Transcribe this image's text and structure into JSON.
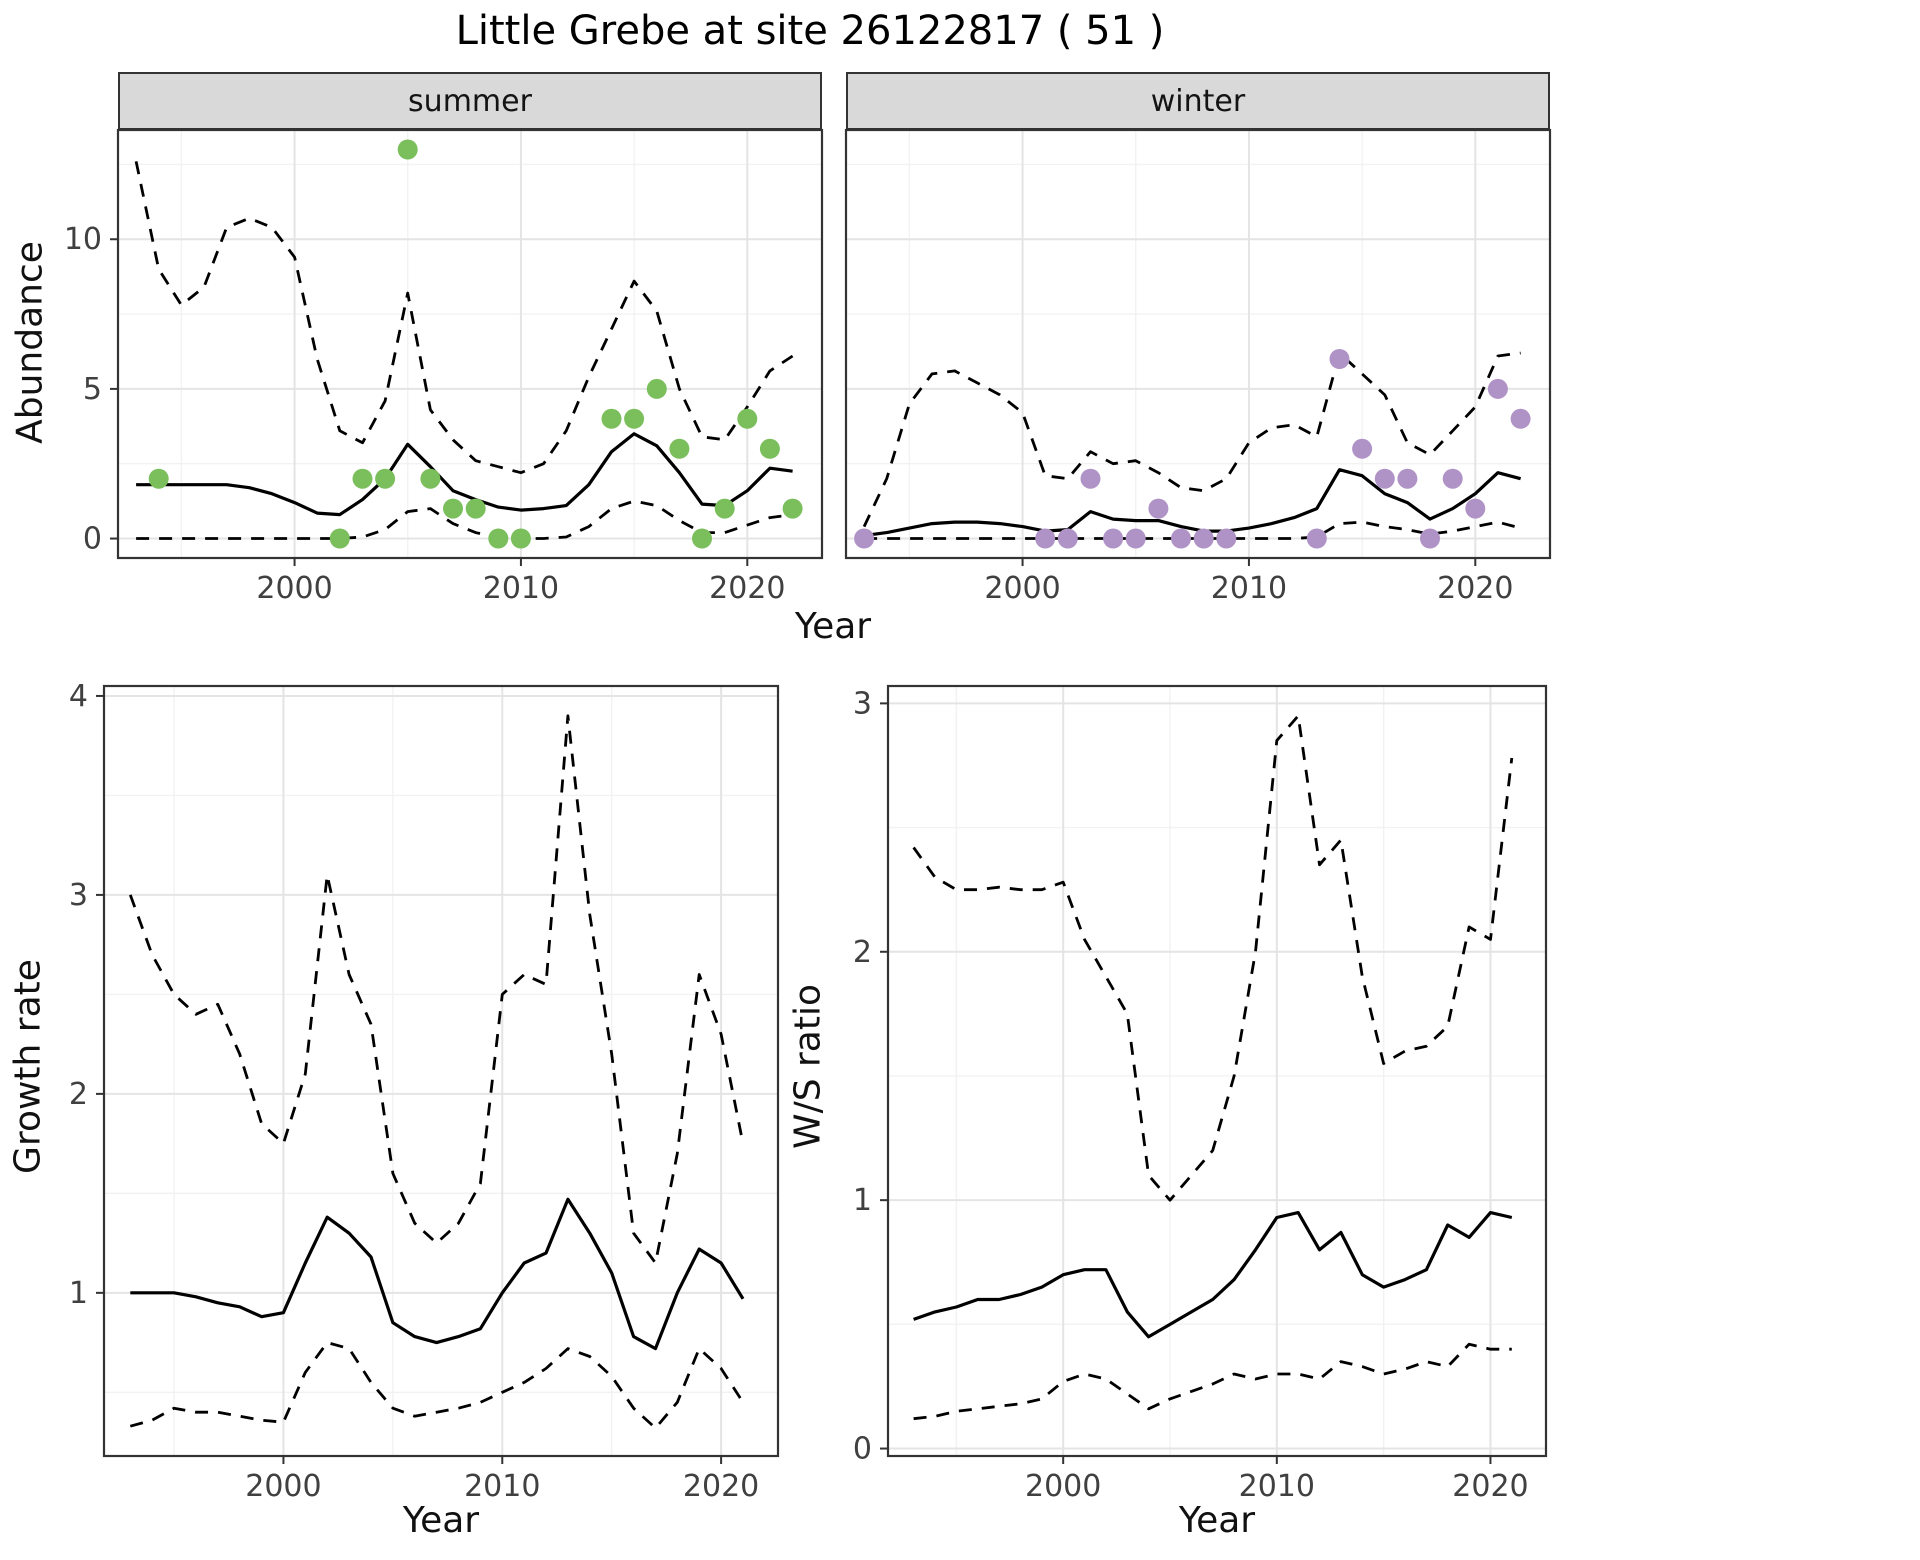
{
  "title": "Little Grebe at site 26122817 ( 51 )",
  "colors": {
    "summer_point": "#7bbf5c",
    "winter_point": "#b093c6",
    "line": "#000000",
    "grid_major": "#e4e4e4",
    "grid_minor": "#f2f2f2",
    "strip_bg": "#d9d9d9",
    "panel_border": "#333333"
  },
  "chart_data": [
    {
      "id": "abundance-summer",
      "type": "line",
      "facet_label": "summer",
      "xlabel": "Year",
      "ylabel": "Abundance",
      "xlim": [
        1992.2,
        2023.3
      ],
      "ylim": [
        -0.65,
        13.65
      ],
      "xticks": [
        2000,
        2010,
        2020
      ],
      "yticks": [
        0,
        5,
        10
      ],
      "xminor": [
        1995,
        2005,
        2015
      ],
      "yminor": [
        2.5,
        7.5,
        12.5
      ],
      "series": [
        {
          "name": "upper-ci",
          "style": "dashed",
          "x": [
            1993,
            1994,
            1995,
            1996,
            1997,
            1998,
            1999,
            2000,
            2001,
            2002,
            2003,
            2004,
            2005,
            2006,
            2007,
            2008,
            2009,
            2010,
            2011,
            2012,
            2013,
            2014,
            2015,
            2016,
            2017,
            2018,
            2019,
            2020,
            2021,
            2022
          ],
          "y": [
            12.6,
            9.0,
            7.8,
            8.4,
            10.4,
            10.7,
            10.4,
            9.4,
            6.0,
            3.6,
            3.2,
            4.6,
            8.2,
            4.3,
            3.3,
            2.6,
            2.4,
            2.2,
            2.5,
            3.6,
            5.4,
            7.0,
            8.6,
            7.6,
            5.0,
            3.4,
            3.3,
            4.4,
            5.6,
            6.1
          ]
        },
        {
          "name": "lower-ci",
          "style": "dashed",
          "x": [
            1993,
            1994,
            1995,
            1996,
            1997,
            1998,
            1999,
            2000,
            2001,
            2002,
            2003,
            2004,
            2005,
            2006,
            2007,
            2008,
            2009,
            2010,
            2011,
            2012,
            2013,
            2014,
            2015,
            2016,
            2017,
            2018,
            2019,
            2020,
            2021,
            2022
          ],
          "y": [
            0,
            0,
            0,
            0,
            0,
            0,
            0,
            0,
            0,
            0,
            0.05,
            0.3,
            0.9,
            1.0,
            0.5,
            0.2,
            0.05,
            0,
            0,
            0.05,
            0.4,
            1.0,
            1.25,
            1.1,
            0.6,
            0.2,
            0.2,
            0.45,
            0.7,
            0.8
          ]
        },
        {
          "name": "fit",
          "style": "solid",
          "x": [
            1993,
            1994,
            1995,
            1996,
            1997,
            1998,
            1999,
            2000,
            2001,
            2002,
            2003,
            2004,
            2005,
            2006,
            2007,
            2008,
            2009,
            2010,
            2011,
            2012,
            2013,
            2014,
            2015,
            2016,
            2017,
            2018,
            2019,
            2020,
            2021,
            2022
          ],
          "y": [
            1.8,
            1.8,
            1.8,
            1.8,
            1.8,
            1.7,
            1.5,
            1.2,
            0.85,
            0.8,
            1.3,
            2.0,
            3.15,
            2.4,
            1.6,
            1.3,
            1.05,
            0.95,
            1.0,
            1.1,
            1.8,
            2.9,
            3.5,
            3.1,
            2.2,
            1.15,
            1.1,
            1.6,
            2.35,
            2.25
          ]
        },
        {
          "name": "observed",
          "style": "points",
          "color": "#7bbf5c",
          "x": [
            1994,
            2002,
            2003,
            2004,
            2005,
            2006,
            2007,
            2008,
            2009,
            2010,
            2014,
            2015,
            2016,
            2017,
            2018,
            2019,
            2020,
            2021,
            2022
          ],
          "y": [
            2,
            0,
            2,
            2,
            13,
            2,
            1,
            1,
            0,
            0,
            4,
            4,
            5,
            3,
            0,
            1,
            4,
            3,
            1
          ]
        }
      ]
    },
    {
      "id": "abundance-winter",
      "type": "line",
      "facet_label": "winter",
      "xlabel": "Year",
      "ylabel": "Abundance",
      "xlim": [
        1992.2,
        2023.3
      ],
      "ylim": [
        -0.65,
        13.65
      ],
      "xticks": [
        2000,
        2010,
        2020
      ],
      "yticks": [
        0,
        5,
        10
      ],
      "xminor": [
        1995,
        2005,
        2015
      ],
      "yminor": [
        2.5,
        7.5,
        12.5
      ],
      "series": [
        {
          "name": "upper-ci",
          "style": "dashed",
          "x": [
            1993,
            1994,
            1995,
            1996,
            1997,
            1998,
            1999,
            2000,
            2001,
            2002,
            2003,
            2004,
            2005,
            2006,
            2007,
            2008,
            2009,
            2010,
            2011,
            2012,
            2013,
            2014,
            2015,
            2016,
            2017,
            2018,
            2019,
            2020,
            2021,
            2022
          ],
          "y": [
            0.4,
            2.0,
            4.5,
            5.5,
            5.6,
            5.2,
            4.8,
            4.2,
            2.1,
            2.0,
            2.9,
            2.5,
            2.6,
            2.2,
            1.7,
            1.6,
            2.0,
            3.2,
            3.7,
            3.8,
            3.4,
            6.2,
            5.5,
            4.8,
            3.2,
            2.8,
            3.6,
            4.4,
            6.1,
            6.2
          ]
        },
        {
          "name": "lower-ci",
          "style": "dashed",
          "x": [
            1993,
            1994,
            1995,
            1996,
            1997,
            1998,
            1999,
            2000,
            2001,
            2002,
            2003,
            2004,
            2005,
            2006,
            2007,
            2008,
            2009,
            2010,
            2011,
            2012,
            2013,
            2014,
            2015,
            2016,
            2017,
            2018,
            2019,
            2020,
            2021,
            2022
          ],
          "y": [
            0,
            0,
            0,
            0,
            0,
            0,
            0,
            0,
            0,
            0,
            0,
            0,
            0,
            0,
            0,
            0,
            0,
            0,
            0,
            0,
            0.05,
            0.5,
            0.55,
            0.4,
            0.3,
            0.15,
            0.25,
            0.4,
            0.55,
            0.35
          ]
        },
        {
          "name": "fit",
          "style": "solid",
          "x": [
            1993,
            1994,
            1995,
            1996,
            1997,
            1998,
            1999,
            2000,
            2001,
            2002,
            2003,
            2004,
            2005,
            2006,
            2007,
            2008,
            2009,
            2010,
            2011,
            2012,
            2013,
            2014,
            2015,
            2016,
            2017,
            2018,
            2019,
            2020,
            2021,
            2022
          ],
          "y": [
            0.1,
            0.2,
            0.35,
            0.5,
            0.55,
            0.55,
            0.5,
            0.4,
            0.25,
            0.3,
            0.9,
            0.65,
            0.6,
            0.6,
            0.4,
            0.25,
            0.25,
            0.35,
            0.5,
            0.7,
            1.0,
            2.3,
            2.1,
            1.5,
            1.2,
            0.65,
            1.0,
            1.5,
            2.2,
            2.0
          ]
        },
        {
          "name": "observed",
          "style": "points",
          "color": "#b093c6",
          "x": [
            1993,
            2001,
            2002,
            2003,
            2004,
            2005,
            2006,
            2007,
            2008,
            2009,
            2013,
            2014,
            2015,
            2016,
            2017,
            2018,
            2019,
            2020,
            2021,
            2022
          ],
          "y": [
            0,
            0,
            0,
            2,
            0,
            0,
            1,
            0,
            0,
            0,
            0,
            6,
            3,
            2,
            2,
            0,
            2,
            1,
            5,
            4
          ]
        }
      ]
    },
    {
      "id": "growth-rate",
      "type": "line",
      "facet_label": null,
      "xlabel": "Year",
      "ylabel": "Growth rate",
      "xlim": [
        1991.8,
        2022.6
      ],
      "ylim": [
        0.18,
        4.05
      ],
      "xticks": [
        2000,
        2010,
        2020
      ],
      "yticks": [
        1,
        2,
        3,
        4
      ],
      "xminor": [
        1995,
        2005,
        2015
      ],
      "yminor": [
        0.5,
        1.5,
        2.5,
        3.5
      ],
      "series": [
        {
          "name": "upper-ci",
          "style": "dashed",
          "x": [
            1993,
            1994,
            1995,
            1996,
            1997,
            1998,
            1999,
            2000,
            2001,
            2002,
            2003,
            2004,
            2005,
            2006,
            2007,
            2008,
            2009,
            2010,
            2011,
            2012,
            2013,
            2014,
            2015,
            2016,
            2017,
            2018,
            2019,
            2020,
            2021
          ],
          "y": [
            3.0,
            2.7,
            2.5,
            2.4,
            2.45,
            2.2,
            1.85,
            1.75,
            2.1,
            3.1,
            2.6,
            2.35,
            1.6,
            1.35,
            1.25,
            1.35,
            1.55,
            2.5,
            2.6,
            2.55,
            3.9,
            2.9,
            2.2,
            1.3,
            1.15,
            1.7,
            2.6,
            2.3,
            1.75
          ]
        },
        {
          "name": "lower-ci",
          "style": "dashed",
          "x": [
            1993,
            1994,
            1995,
            1996,
            1997,
            1998,
            1999,
            2000,
            2001,
            2002,
            2003,
            2004,
            2005,
            2006,
            2007,
            2008,
            2009,
            2010,
            2011,
            2012,
            2013,
            2014,
            2015,
            2016,
            2017,
            2018,
            2019,
            2020,
            2021
          ],
          "y": [
            0.33,
            0.36,
            0.42,
            0.4,
            0.4,
            0.38,
            0.36,
            0.35,
            0.6,
            0.75,
            0.72,
            0.55,
            0.42,
            0.38,
            0.4,
            0.42,
            0.45,
            0.5,
            0.55,
            0.62,
            0.72,
            0.68,
            0.58,
            0.42,
            0.32,
            0.45,
            0.72,
            0.62,
            0.45
          ]
        },
        {
          "name": "fit",
          "style": "solid",
          "x": [
            1993,
            1994,
            1995,
            1996,
            1997,
            1998,
            1999,
            2000,
            2001,
            2002,
            2003,
            2004,
            2005,
            2006,
            2007,
            2008,
            2009,
            2010,
            2011,
            2012,
            2013,
            2014,
            2015,
            2016,
            2017,
            2018,
            2019,
            2020,
            2021
          ],
          "y": [
            1.0,
            1.0,
            1.0,
            0.98,
            0.95,
            0.93,
            0.88,
            0.9,
            1.15,
            1.38,
            1.3,
            1.18,
            0.85,
            0.78,
            0.75,
            0.78,
            0.82,
            1.0,
            1.15,
            1.2,
            1.47,
            1.3,
            1.1,
            0.78,
            0.72,
            1.0,
            1.22,
            1.15,
            0.97
          ]
        }
      ]
    },
    {
      "id": "ws-ratio",
      "type": "line",
      "facet_label": null,
      "xlabel": "Year",
      "ylabel": "W/S ratio",
      "xlim": [
        1991.8,
        2022.6
      ],
      "ylim": [
        -0.03,
        3.07
      ],
      "xticks": [
        2000,
        2010,
        2020
      ],
      "yticks": [
        0,
        1,
        2,
        3
      ],
      "xminor": [
        1995,
        2005,
        2015
      ],
      "yminor": [
        0.5,
        1.5,
        2.5
      ],
      "series": [
        {
          "name": "upper-ci",
          "style": "dashed",
          "x": [
            1993,
            1994,
            1995,
            1996,
            1997,
            1998,
            1999,
            2000,
            2001,
            2002,
            2003,
            2004,
            2005,
            2006,
            2007,
            2008,
            2009,
            2010,
            2011,
            2012,
            2013,
            2014,
            2015,
            2016,
            2017,
            2018,
            2019,
            2020,
            2021
          ],
          "y": [
            2.42,
            2.3,
            2.25,
            2.25,
            2.26,
            2.25,
            2.25,
            2.28,
            2.05,
            1.9,
            1.75,
            1.1,
            1.0,
            1.1,
            1.2,
            1.5,
            2.0,
            2.85,
            2.95,
            2.35,
            2.45,
            1.9,
            1.55,
            1.6,
            1.62,
            1.7,
            2.1,
            2.05,
            2.78
          ]
        },
        {
          "name": "lower-ci",
          "style": "dashed",
          "x": [
            1993,
            1994,
            1995,
            1996,
            1997,
            1998,
            1999,
            2000,
            2001,
            2002,
            2003,
            2004,
            2005,
            2006,
            2007,
            2008,
            2009,
            2010,
            2011,
            2012,
            2013,
            2014,
            2015,
            2016,
            2017,
            2018,
            2019,
            2020,
            2021
          ],
          "y": [
            0.12,
            0.13,
            0.15,
            0.16,
            0.17,
            0.18,
            0.2,
            0.27,
            0.3,
            0.28,
            0.22,
            0.16,
            0.2,
            0.23,
            0.26,
            0.3,
            0.28,
            0.3,
            0.3,
            0.28,
            0.35,
            0.33,
            0.3,
            0.32,
            0.35,
            0.33,
            0.42,
            0.4,
            0.4
          ]
        },
        {
          "name": "fit",
          "style": "solid",
          "x": [
            1993,
            1994,
            1995,
            1996,
            1997,
            1998,
            1999,
            2000,
            2001,
            2002,
            2003,
            2004,
            2005,
            2006,
            2007,
            2008,
            2009,
            2010,
            2011,
            2012,
            2013,
            2014,
            2015,
            2016,
            2017,
            2018,
            2019,
            2020,
            2021
          ],
          "y": [
            0.52,
            0.55,
            0.57,
            0.6,
            0.6,
            0.62,
            0.65,
            0.7,
            0.72,
            0.72,
            0.55,
            0.45,
            0.5,
            0.55,
            0.6,
            0.68,
            0.8,
            0.93,
            0.95,
            0.8,
            0.87,
            0.7,
            0.65,
            0.68,
            0.72,
            0.9,
            0.85,
            0.95,
            0.93
          ]
        }
      ]
    }
  ]
}
